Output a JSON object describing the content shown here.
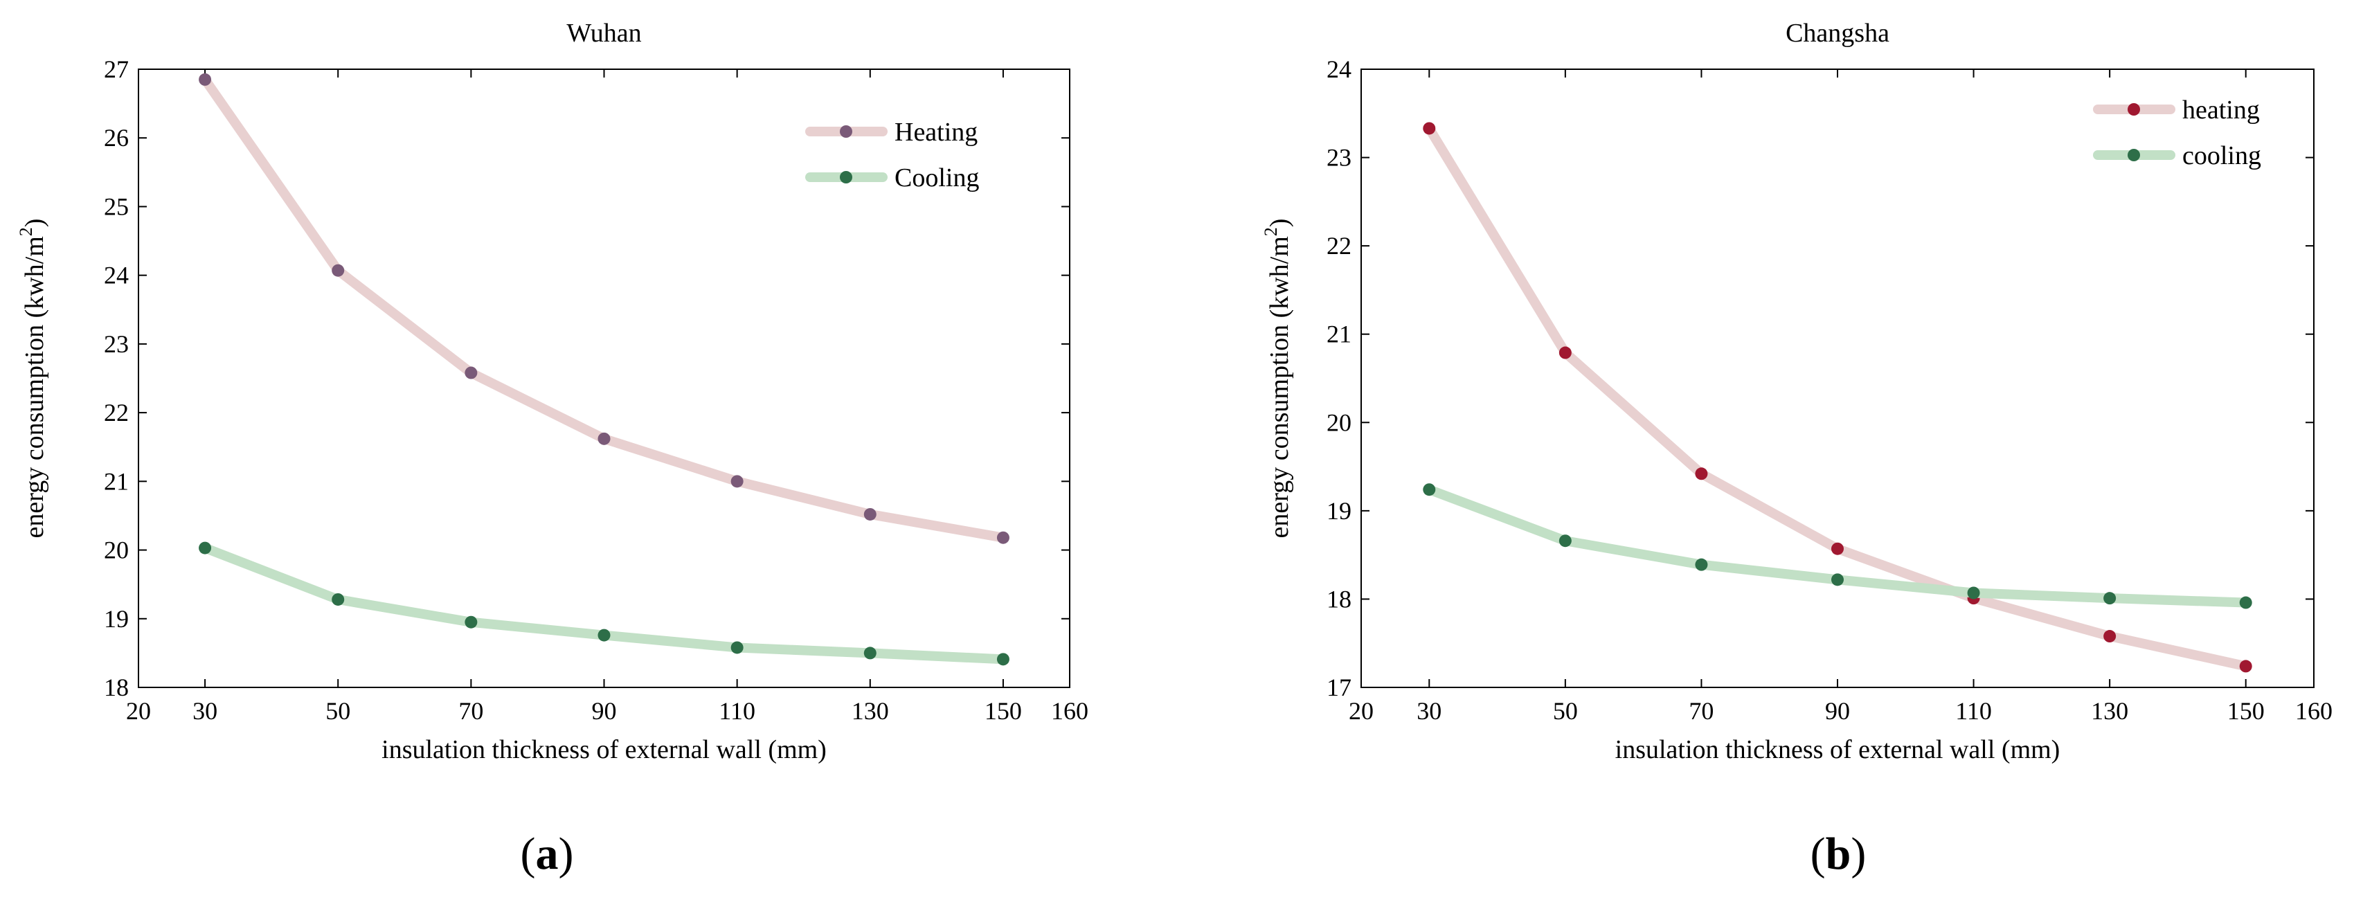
{
  "chart_data": [
    {
      "type": "line",
      "title": "Wuhan",
      "panel_label": "a",
      "xlabel": "insulation thickness of external wall (mm)",
      "ylabel": "energy consumption (kwh/m²)",
      "ylabel_main": "energy consumption (kwh/m",
      "ylabel_sup": "2",
      "ylabel_close": ")",
      "x": [
        30,
        50,
        70,
        90,
        110,
        130,
        150
      ],
      "xlim": [
        20,
        160
      ],
      "ylim": [
        18,
        27
      ],
      "xticks": [
        20,
        30,
        50,
        70,
        90,
        110,
        130,
        150,
        160
      ],
      "yticks": [
        18,
        19,
        20,
        21,
        22,
        23,
        24,
        25,
        26,
        27
      ],
      "legend_position": "top-right",
      "series": [
        {
          "name": "Heating",
          "values": [
            26.85,
            24.07,
            22.58,
            21.62,
            21.0,
            20.52,
            20.18
          ],
          "line_color": "#e8d0d0",
          "marker_color": "#7a5a78"
        },
        {
          "name": "Cooling",
          "values": [
            20.03,
            19.28,
            18.95,
            18.76,
            18.58,
            18.5,
            18.41
          ],
          "line_color": "#c2e0c6",
          "marker_color": "#2d6e48"
        }
      ]
    },
    {
      "type": "line",
      "title": "Changsha",
      "panel_label": "b",
      "xlabel": "insulation thickness of external wall (mm)",
      "ylabel": "energy consumption (kwh/m²)",
      "ylabel_main": "energy consumption (kwh/m",
      "ylabel_sup": "2",
      "ylabel_close": ")",
      "x": [
        30,
        50,
        70,
        90,
        110,
        130,
        150
      ],
      "xlim": [
        20,
        160
      ],
      "ylim": [
        17,
        24
      ],
      "xticks": [
        20,
        30,
        50,
        70,
        90,
        110,
        130,
        150,
        160
      ],
      "yticks": [
        17,
        18,
        19,
        20,
        21,
        22,
        23,
        24
      ],
      "legend_position": "top-right",
      "series": [
        {
          "name": "heating",
          "values": [
            23.33,
            20.79,
            19.42,
            18.57,
            18.01,
            17.58,
            17.24
          ],
          "line_color": "#e8d0d0",
          "marker_color": "#a01830"
        },
        {
          "name": "cooling",
          "values": [
            19.24,
            18.66,
            18.39,
            18.22,
            18.07,
            18.01,
            17.96
          ],
          "line_color": "#c2e0c6",
          "marker_color": "#2d6e48"
        }
      ]
    }
  ]
}
